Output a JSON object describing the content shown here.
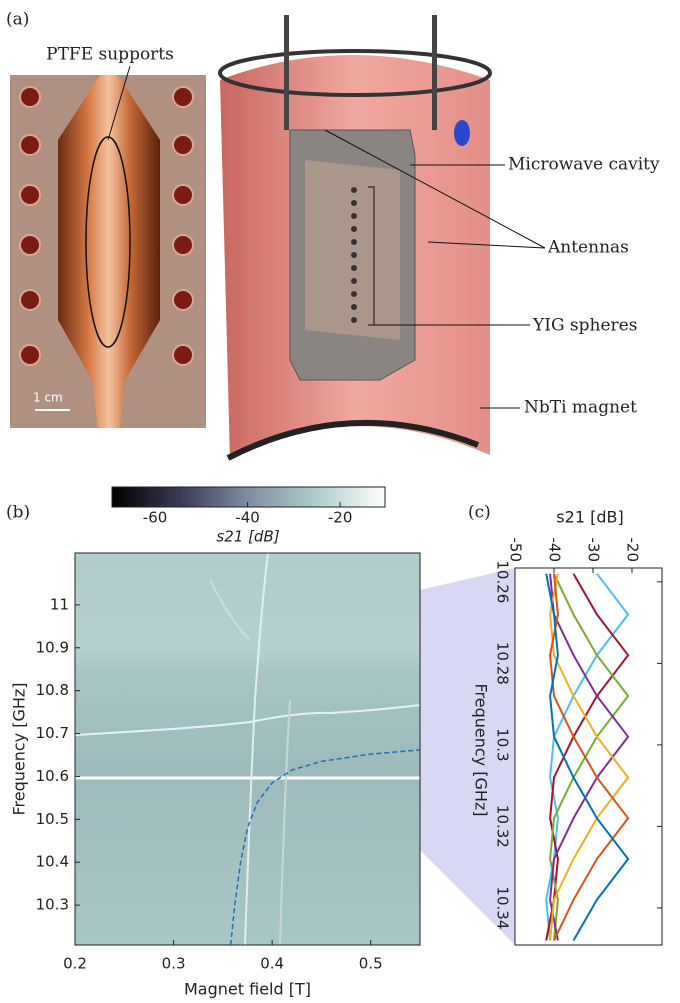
{
  "figure": {
    "panel_a": "(a)",
    "panel_b": "(b)",
    "panel_c": "(c)",
    "annotations": [
      "PTFE supports",
      "1 cm",
      "Microwave cavity",
      "Antennas",
      "YIG spheres",
      "NbTi magnet"
    ]
  },
  "chart_data": [
    {
      "type": "heatmap",
      "xlabel": "Magnet field [T]",
      "ylabel": "Frequency [GHz]",
      "xlim": [
        0.2,
        0.55
      ],
      "xticks": [
        0.2,
        0.3,
        0.4,
        0.5
      ],
      "ylim": [
        10.207,
        11.121
      ],
      "yticks": [
        10.3,
        10.4,
        10.5,
        10.6,
        10.7,
        10.8,
        10.9,
        11
      ],
      "colorbar": {
        "label": "s21 [dB]",
        "lim": [
          -69.3,
          -10.3
        ],
        "ticks": [
          -60,
          -40,
          -20
        ],
        "colors": [
          "#000000",
          "#3a3a55",
          "#7f8fa0",
          "#b0cccc",
          "#ffffff"
        ]
      },
      "series": [
        {
          "color": "#1f6fb5",
          "dashed": true,
          "x": [
            0.358,
            0.362,
            0.368,
            0.375,
            0.385,
            0.4,
            0.42,
            0.45,
            0.5,
            0.55
          ],
          "values": [
            10.207,
            10.3,
            10.4,
            10.48,
            10.54,
            10.585,
            10.615,
            10.635,
            10.652,
            10.662
          ]
        }
      ]
    },
    {
      "type": "line",
      "xlabel": "s21 [dB]",
      "ylabel": "Frequency [GHz]",
      "xlim": [
        -50,
        -12.3
      ],
      "xticks": [
        -50,
        -40,
        -30,
        -20
      ],
      "ylim": [
        10.2566,
        10.3491
      ],
      "yticks": [
        10.26,
        10.28,
        10.3,
        10.32,
        10.34
      ],
      "y_inverted": true,
      "y": [
        10.258,
        10.268,
        10.278,
        10.288,
        10.298,
        10.308,
        10.318,
        10.328,
        10.338,
        10.348
      ],
      "series": [
        {
          "color": "#4dbeee",
          "values": [
            -29,
            -21,
            -29,
            -35,
            -40,
            -41,
            -39,
            -40,
            -42,
            -41
          ]
        },
        {
          "color": "#a2142f",
          "values": [
            -35,
            -29,
            -21,
            -29,
            -35,
            -40,
            -41,
            -39,
            -40,
            -42
          ]
        },
        {
          "color": "#77ac30",
          "values": [
            -40,
            -35,
            -29,
            -21,
            -29,
            -35,
            -40,
            -41,
            -39,
            -40
          ]
        },
        {
          "color": "#7e2f8e",
          "values": [
            -41,
            -40,
            -35,
            -29,
            -21,
            -29,
            -35,
            -40,
            -41,
            -39
          ]
        },
        {
          "color": "#edb120",
          "values": [
            -39,
            -41,
            -40,
            -35,
            -29,
            -21,
            -29,
            -35,
            -40,
            -41
          ]
        },
        {
          "color": "#d95319",
          "values": [
            -40,
            -39,
            -41,
            -40,
            -35,
            -29,
            -21,
            -29,
            -35,
            -40
          ]
        },
        {
          "color": "#0072bd",
          "values": [
            -42,
            -40,
            -39,
            -41,
            -40,
            -35,
            -29,
            -21,
            -29,
            -35
          ]
        }
      ]
    }
  ]
}
